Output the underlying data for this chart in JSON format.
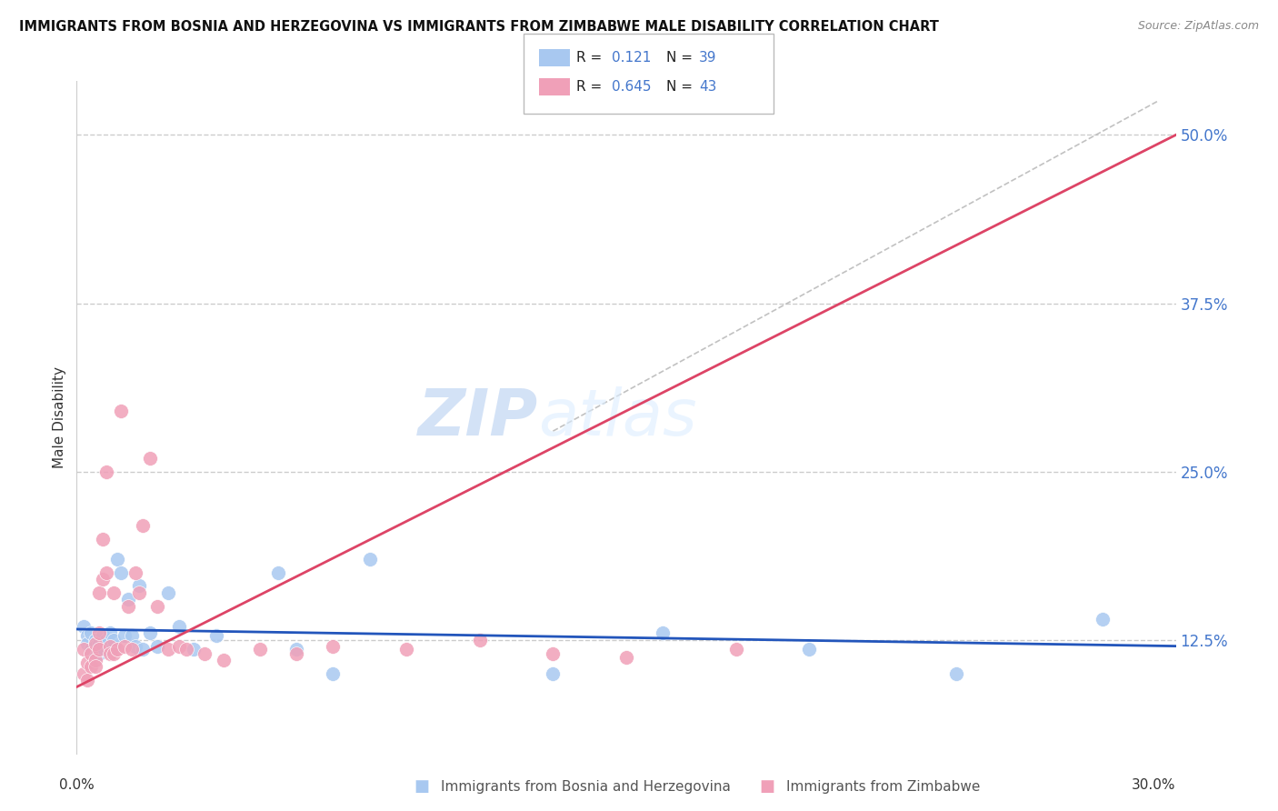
{
  "title": "IMMIGRANTS FROM BOSNIA AND HERZEGOVINA VS IMMIGRANTS FROM ZIMBABWE MALE DISABILITY CORRELATION CHART",
  "source": "Source: ZipAtlas.com",
  "ylabel": "Male Disability",
  "yticks": [
    "12.5%",
    "25.0%",
    "37.5%",
    "50.0%"
  ],
  "ytick_vals": [
    0.125,
    0.25,
    0.375,
    0.5
  ],
  "xlim": [
    0.0,
    0.3
  ],
  "ylim": [
    0.04,
    0.54
  ],
  "legend_r_blue": "0.121",
  "legend_n_blue": "39",
  "legend_r_pink": "0.645",
  "legend_n_pink": "43",
  "color_blue": "#A8C8F0",
  "color_pink": "#F0A0B8",
  "line_blue": "#2255BB",
  "line_pink": "#DD4466",
  "watermark_zip": "ZIP",
  "watermark_atlas": "atlas",
  "blue_scatter_x": [
    0.002,
    0.003,
    0.003,
    0.004,
    0.004,
    0.005,
    0.005,
    0.006,
    0.006,
    0.007,
    0.007,
    0.008,
    0.008,
    0.009,
    0.01,
    0.01,
    0.011,
    0.012,
    0.013,
    0.014,
    0.015,
    0.016,
    0.017,
    0.018,
    0.02,
    0.022,
    0.025,
    0.028,
    0.032,
    0.038,
    0.055,
    0.06,
    0.07,
    0.08,
    0.13,
    0.16,
    0.2,
    0.24,
    0.28
  ],
  "blue_scatter_y": [
    0.135,
    0.128,
    0.122,
    0.13,
    0.118,
    0.125,
    0.12,
    0.122,
    0.115,
    0.128,
    0.118,
    0.122,
    0.125,
    0.13,
    0.12,
    0.125,
    0.185,
    0.175,
    0.128,
    0.155,
    0.128,
    0.12,
    0.165,
    0.118,
    0.13,
    0.12,
    0.16,
    0.135,
    0.118,
    0.128,
    0.175,
    0.118,
    0.1,
    0.185,
    0.1,
    0.13,
    0.118,
    0.1,
    0.14
  ],
  "pink_scatter_x": [
    0.002,
    0.002,
    0.003,
    0.003,
    0.004,
    0.004,
    0.005,
    0.005,
    0.005,
    0.006,
    0.006,
    0.006,
    0.007,
    0.007,
    0.008,
    0.008,
    0.009,
    0.009,
    0.01,
    0.01,
    0.011,
    0.012,
    0.013,
    0.014,
    0.015,
    0.016,
    0.017,
    0.018,
    0.02,
    0.022,
    0.025,
    0.028,
    0.03,
    0.035,
    0.04,
    0.05,
    0.06,
    0.07,
    0.09,
    0.11,
    0.13,
    0.15,
    0.18
  ],
  "pink_scatter_y": [
    0.118,
    0.1,
    0.108,
    0.095,
    0.115,
    0.105,
    0.122,
    0.11,
    0.105,
    0.16,
    0.13,
    0.118,
    0.2,
    0.17,
    0.25,
    0.175,
    0.12,
    0.115,
    0.16,
    0.115,
    0.118,
    0.295,
    0.12,
    0.15,
    0.118,
    0.175,
    0.16,
    0.21,
    0.26,
    0.15,
    0.118,
    0.12,
    0.118,
    0.115,
    0.11,
    0.118,
    0.115,
    0.12,
    0.118,
    0.125,
    0.115,
    0.112,
    0.118
  ]
}
